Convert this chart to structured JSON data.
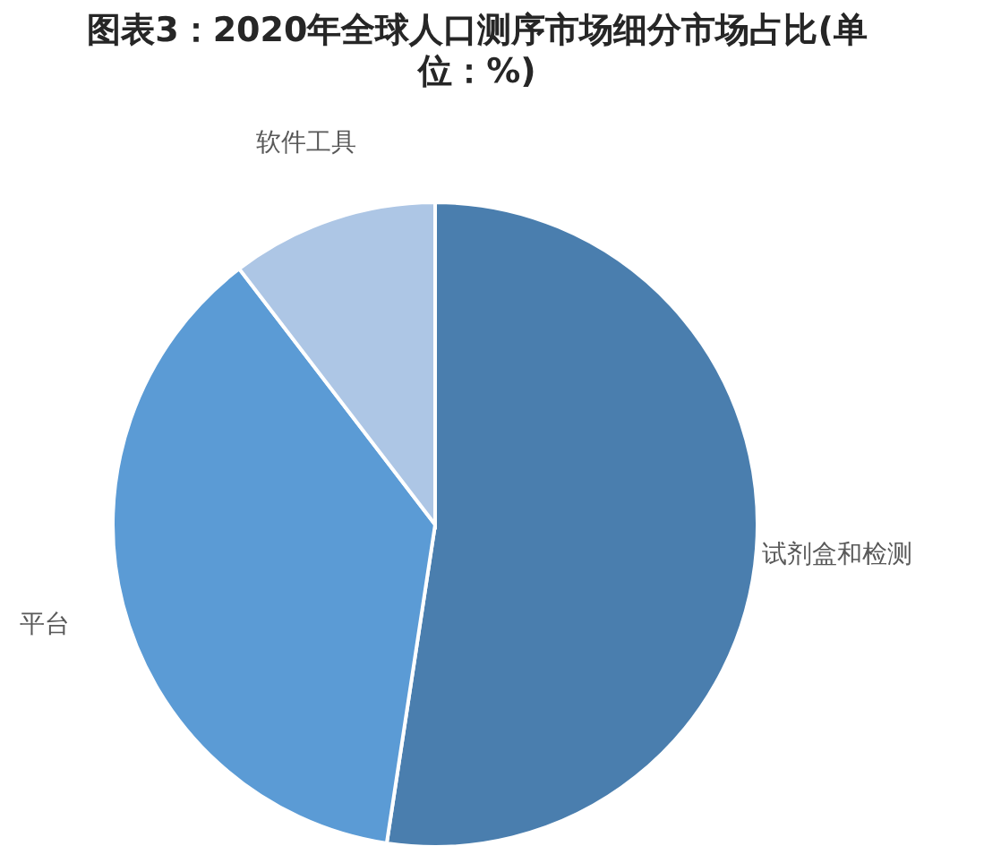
{
  "chart_data": {
    "type": "pie",
    "title": "图表3：2020年全球人口测序市场细分市场占比(单位：%)",
    "categories": [
      "试剂盒和检测",
      "平台",
      "软件工具"
    ],
    "values": [
      52.4,
      37.2,
      10.4
    ],
    "colors": [
      "#4a7eae",
      "#5b9bd5",
      "#adc6e5"
    ]
  }
}
